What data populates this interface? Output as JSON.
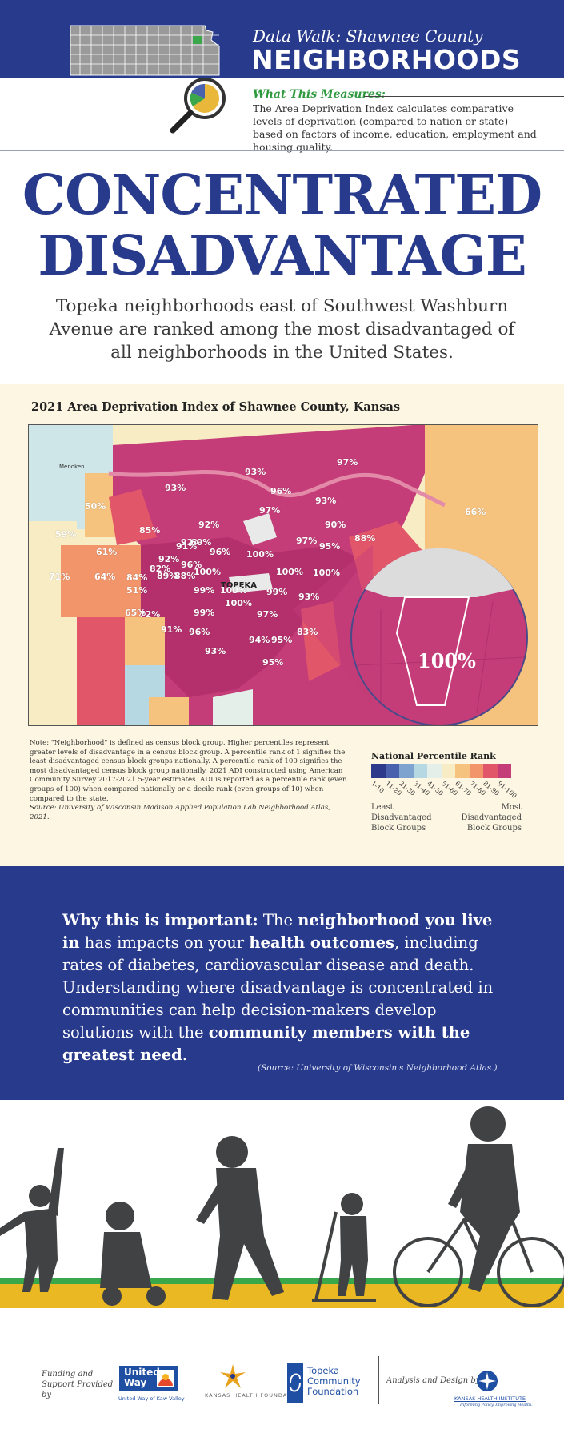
{
  "header": {
    "subtitle": "Data Walk: Shawnee County",
    "title": "NEIGHBORHOODS",
    "measure_heading": "What This Measures:",
    "measure_body": "The Area Deprivation Index calculates comparative levels of deprivation (compared to nation or state) based on factors of income, education, employment and housing quality."
  },
  "headline": {
    "line1": "CONCENTRATED",
    "line2": "DISADVANTAGE",
    "lede": "Topeka neighborhoods east of Southwest Washburn Avenue are ranked among the most disadvantaged of all neighborhoods in the United States."
  },
  "map": {
    "title": "2021 Area Deprivation Index of Shawnee County, Kansas",
    "place_labels": {
      "menoken": "Menoken",
      "topeka": "TOPEKA"
    },
    "percent_labels": [
      "97%",
      "93%",
      "93%",
      "96%",
      "93%",
      "97%",
      "50%",
      "92%",
      "90%",
      "92%",
      "66%",
      "59%",
      "85%",
      "60%",
      "91%",
      "88%",
      "97%",
      "95%",
      "61%",
      "96%",
      "100%",
      "92%",
      "82%",
      "96%",
      "100%",
      "100%",
      "100%",
      "71%",
      "64%",
      "84%",
      "89%",
      "88%",
      "99%",
      "100%",
      "99%",
      "93%",
      "51%",
      "100%",
      "65%",
      "72%",
      "99%",
      "97%",
      "91%",
      "96%",
      "83%",
      "94%",
      "95%",
      "93%",
      "95%"
    ],
    "zoom_label": "100%",
    "note": "Note: \"Neighborhood\" is defined as census block group. Higher percentiles represent greater levels of disadvantage in a census block group. A percentile rank of 1 signifies the least disadvantaged census block groups nationally. A percentile rank of 100 signifies the most disadvantaged census block group nationally. 2021 ADI constructed using American Community Survey 2017-2021 5-year estimates. ADI is reported as a percentile rank (even groups of 100) when compared nationally or a decile rank (even groups of 10) when compared to the state.",
    "source": "Source: University of Wisconsin Madison Applied Population Lab Neighborhood Atlas, 2021."
  },
  "legend": {
    "title": "National Percentile Rank",
    "ranges": [
      "1-10",
      "11-20",
      "21-30",
      "31-40",
      "41-50",
      "51-60",
      "61-70",
      "71-80",
      "81-90",
      "91-100"
    ],
    "colors": [
      "#2d3a8c",
      "#4a62ad",
      "#7fa3cf",
      "#b5d8e3",
      "#e4efe9",
      "#f7ecc4",
      "#f6c37e",
      "#f2956b",
      "#e2566a",
      "#c43c78"
    ],
    "low_label": "Least Disadvantaged Block Groups",
    "high_label": "Most Disadvantaged Block Groups"
  },
  "why": {
    "lead": "Why this is important:",
    "t1": " The ",
    "b1": "neighborhood you live in",
    "t2": " has impacts on your ",
    "b2": "health outcomes",
    "t3": ", including rates of diabetes, cardiovascular disease and death. Understanding where disadvantage is concentrated in communities can help decision-makers develop solutions with the ",
    "b3": "community members with the greatest need",
    "t4": ".",
    "source": "(Source: University of Wisconsin's Neighborhood Atlas.)"
  },
  "footer": {
    "funding": "Funding and Support Provided by",
    "uw_logo": "United Way",
    "uw_caption": "United Way of Kaw Valley",
    "khf_caption": "KANSAS HEALTH FOUNDATION",
    "tcf_logo": "Topeka Community Foundation",
    "design": "Analysis and Design by",
    "khi_caption": "KANSAS HEALTH INSTITUTE",
    "khi_tag": "Informing Policy. Improving Health."
  },
  "colors": {
    "navy": "#283a8c",
    "green": "#2f9a3f",
    "cream": "#fcf6e2",
    "magenta": "#c43c78"
  }
}
